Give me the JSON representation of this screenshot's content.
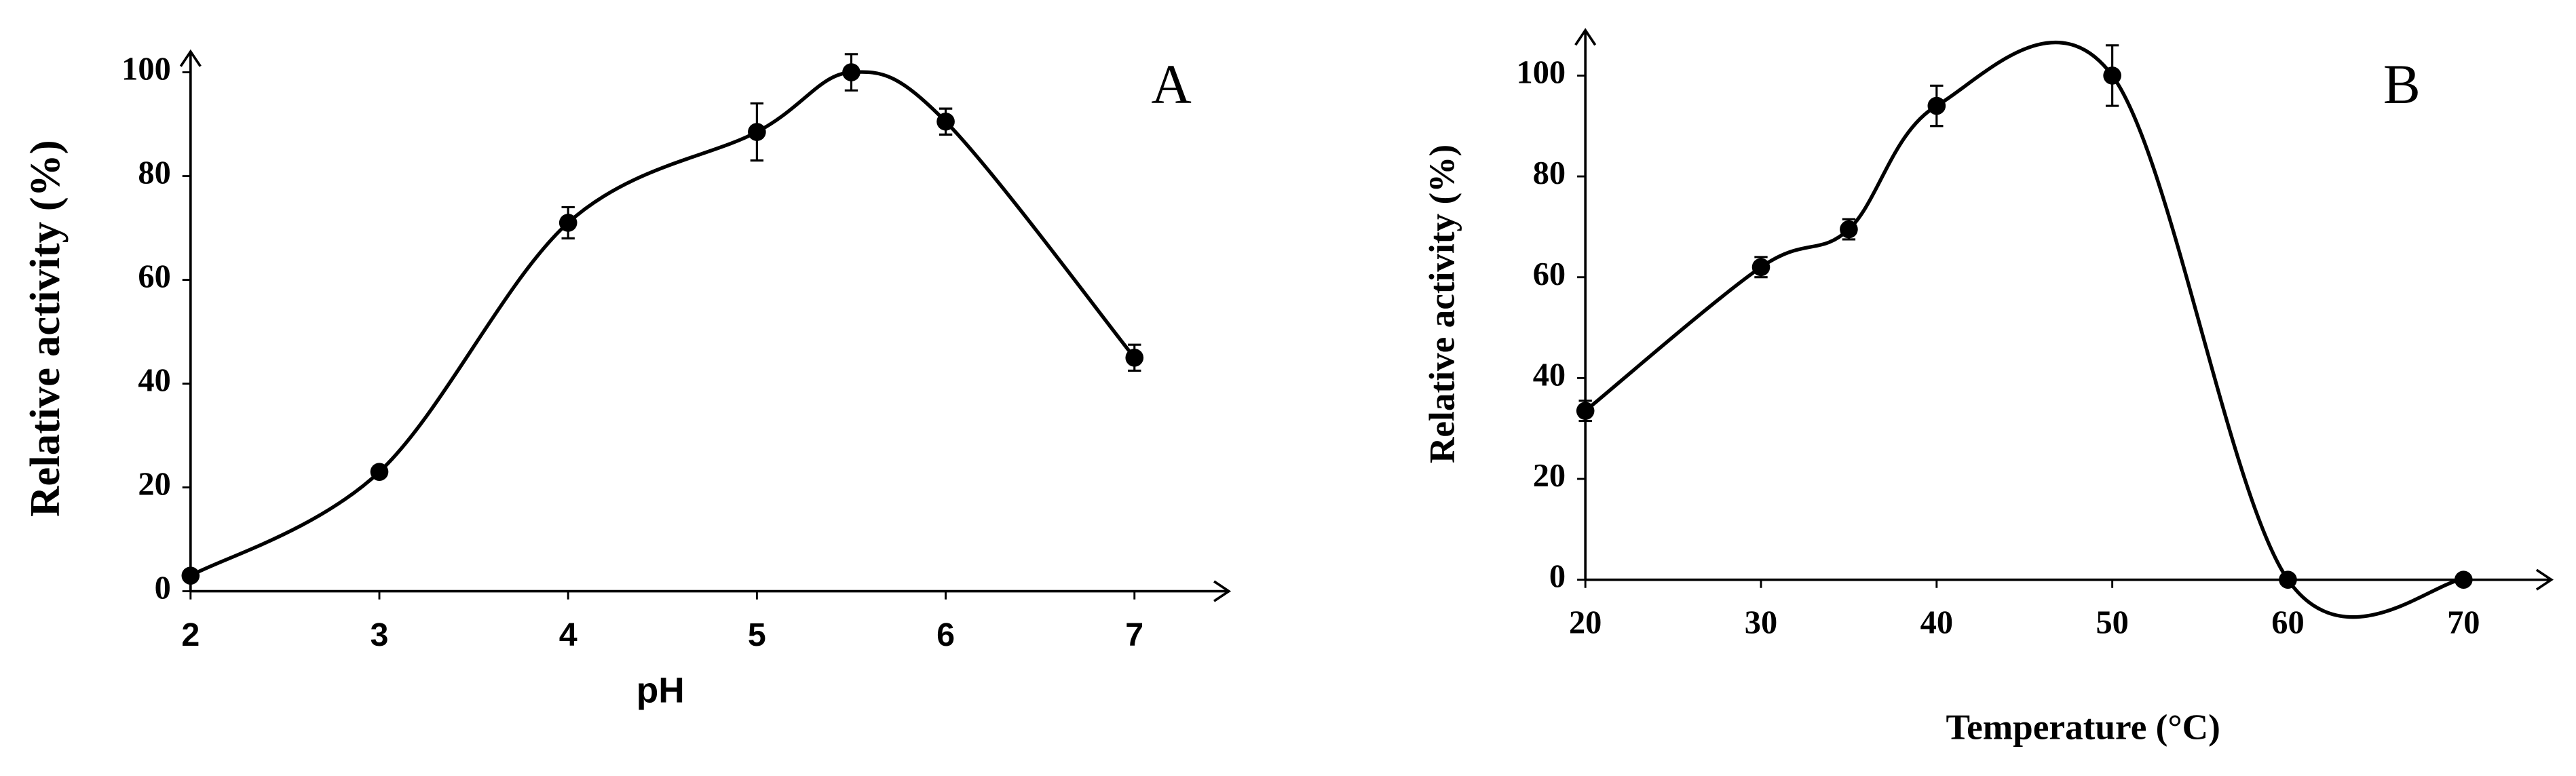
{
  "chart_data": [
    {
      "type": "line",
      "label": "A",
      "xlabel": "pH",
      "ylabel": "Relative activity (%)",
      "x": [
        2,
        3,
        4,
        5,
        5.5,
        6,
        7
      ],
      "values": [
        3,
        23,
        71,
        88.5,
        100,
        90.5,
        45
      ],
      "errors": [
        1,
        1,
        3,
        5.5,
        3.5,
        2.5,
        2.5
      ],
      "color": "#000000",
      "xlim": [
        2,
        7.5
      ],
      "ylim": [
        0,
        104
      ],
      "xticks": [
        2,
        3,
        4,
        5,
        6,
        7
      ],
      "yticks": [
        0,
        20,
        40,
        60,
        80,
        100
      ],
      "grid": false
    },
    {
      "type": "line",
      "label": "B",
      "xlabel": "Temperature (°C)",
      "ylabel": "Relative activity (%)",
      "x": [
        20,
        30,
        35,
        40,
        50,
        60,
        70
      ],
      "values": [
        33.5,
        62,
        69.5,
        94,
        100,
        0,
        0
      ],
      "errors": [
        2,
        2,
        2,
        4,
        6,
        0,
        0
      ],
      "color": "#000000",
      "xlim": [
        20,
        75
      ],
      "ylim": [
        0,
        109
      ],
      "xticks": [
        20,
        30,
        40,
        50,
        60,
        70
      ],
      "yticks": [
        0,
        20,
        40,
        60,
        80,
        100
      ],
      "grid": false
    }
  ]
}
